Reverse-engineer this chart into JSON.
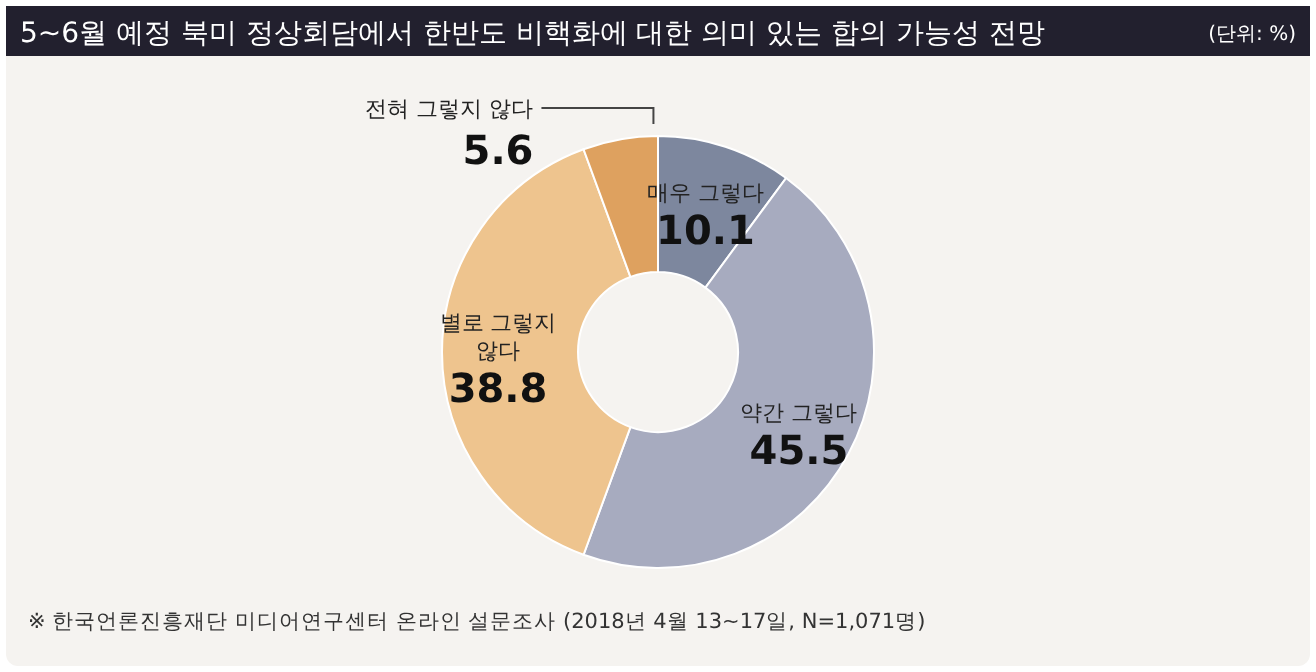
{
  "chart_data": {
    "type": "donut",
    "title": "5~6월 예정 북미 정상회담에서 한반도 비핵화에 대한 의미 있는 합의 가능성 전망",
    "categories": [
      "매우 그렇다",
      "약간 그렇다",
      "별로 그렇지 않다",
      "전혀 그렇지 않다"
    ],
    "values": [
      10.1,
      45.5,
      38.8,
      5.6
    ],
    "colors": [
      "#7d879e",
      "#a7abbf",
      "#eec48e",
      "#dea15f"
    ],
    "data_labels": true,
    "annotations": [
      "(단위: %)",
      "※ 한국언론진흥재단 미디어연구센터 온라인 설문조사 (2018년 4월 13~17일, N=1,071명)"
    ]
  }
}
